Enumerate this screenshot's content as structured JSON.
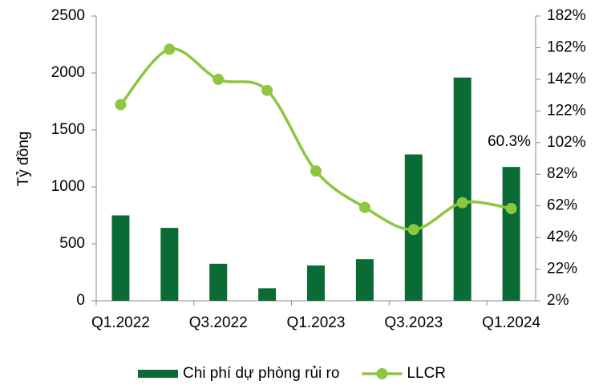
{
  "chart_data": {
    "type": "bar-line",
    "categories": [
      "Q1.2022",
      null,
      "Q3.2022",
      null,
      "Q1.2023",
      null,
      "Q3.2023",
      null,
      "Q1.2024"
    ],
    "ylabel": "Tỷ đồng",
    "series": [
      {
        "name": "Chi phí dự phòng rủi ro",
        "type": "bar",
        "color": "#0b6b35",
        "values": [
          750,
          640,
          325,
          110,
          310,
          365,
          1285,
          1960,
          1175
        ]
      },
      {
        "name": "LLCR",
        "type": "line",
        "axis": "y2",
        "color": "#8dc63f",
        "values": [
          126,
          161,
          142,
          135,
          84,
          61,
          47,
          64,
          60.3
        ]
      }
    ],
    "annotation": "60.3%",
    "ylim": [
      0,
      2500
    ],
    "yticks": [
      0,
      500,
      1000,
      1500,
      2000,
      2500
    ],
    "y2lim": [
      2,
      182
    ],
    "y2ticks": [
      {
        "value": 2,
        "label": "2%"
      },
      {
        "value": 22,
        "label": "22%"
      },
      {
        "value": 42,
        "label": "42%"
      },
      {
        "value": 62,
        "label": "62%"
      },
      {
        "value": 82,
        "label": "82%"
      },
      {
        "value": 102,
        "label": "102%"
      },
      {
        "value": 122,
        "label": "122%"
      },
      {
        "value": 142,
        "label": "142%"
      },
      {
        "value": 162,
        "label": "162%"
      },
      {
        "value": 182,
        "label": "182%"
      }
    ],
    "legend": "bottom",
    "grid": false
  }
}
